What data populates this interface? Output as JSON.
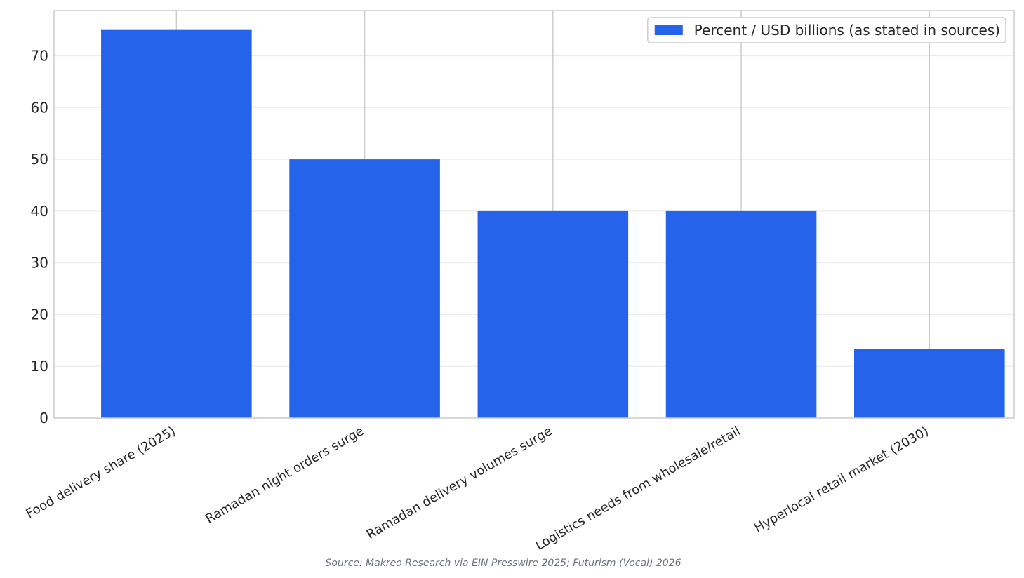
{
  "chart_data": {
    "type": "bar",
    "categories": [
      "Food delivery share (2025)",
      "Ramadan night orders surge",
      "Ramadan delivery volumes surge",
      "Logistics needs from wholesale/retail",
      "Hyperlocal retail market (2030)"
    ],
    "series": [
      {
        "name": "Percent / USD billions (as stated in sources)",
        "values": [
          75,
          50,
          40,
          40,
          13.4
        ],
        "color": "#2563eb"
      }
    ],
    "title": "",
    "xlabel": "",
    "ylabel": "",
    "ylim": [
      0,
      78.75
    ],
    "yticks": [
      0,
      10,
      20,
      30,
      40,
      50,
      60,
      70
    ],
    "grid": "on",
    "legend": "top-right",
    "source": "Source: Makreo Research via EIN Presswire 2025; Futurism (Vocal) 2026"
  }
}
